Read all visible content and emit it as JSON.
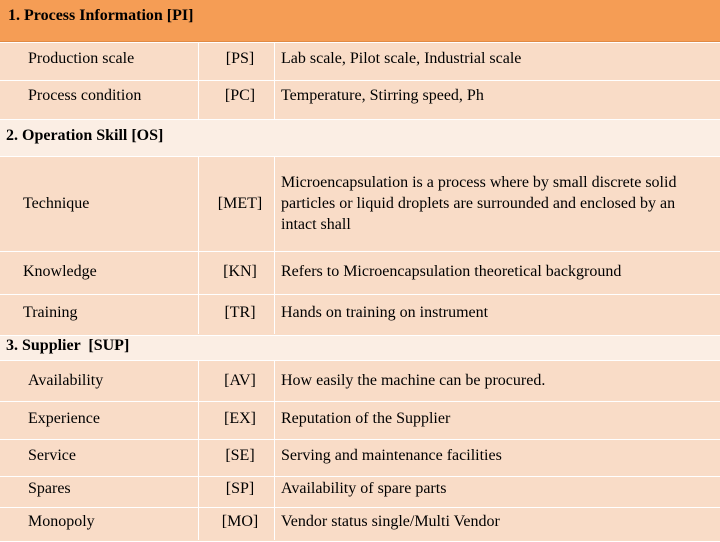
{
  "sections": [
    {
      "title": "1. Process Information [PI]",
      "rows": [
        {
          "name": "Production scale",
          "code": "[PS]",
          "desc": "Lab scale, Pilot scale, Industrial scale"
        },
        {
          "name": "Process condition",
          "code": "[PC]",
          "desc": "Temperature, Stirring speed, Ph"
        }
      ]
    },
    {
      "title": "2. Operation Skill [OS]",
      "rows": [
        {
          "name": "Technique",
          "code": "[MET]",
          "desc": "Microencapsulation is a process where by small discrete solid particles or liquid droplets are surrounded and enclosed by an intact shall"
        },
        {
          "name": "Knowledge",
          "code": "[KN]",
          "desc": "Refers to Microencapsulation theoretical background"
        },
        {
          "name": "Training",
          "code": "[TR]",
          "desc": "Hands on training on instrument"
        }
      ]
    },
    {
      "title": "3. Supplier  [SUP]",
      "rows": [
        {
          "name": "Availability",
          "code": "[AV]",
          "desc": "How easily the machine can be procured."
        },
        {
          "name": "Experience",
          "code": "[EX]",
          "desc": "Reputation of the Supplier"
        },
        {
          "name": "Service",
          "code": "[SE]",
          "desc": "Serving and maintenance facilities"
        },
        {
          "name": "Spares",
          "code": "[SP]",
          "desc": "Availability of spare parts"
        },
        {
          "name": "Monopoly",
          "code": "[MO]",
          "desc": "Vendor status single/Multi Vendor"
        }
      ]
    }
  ]
}
